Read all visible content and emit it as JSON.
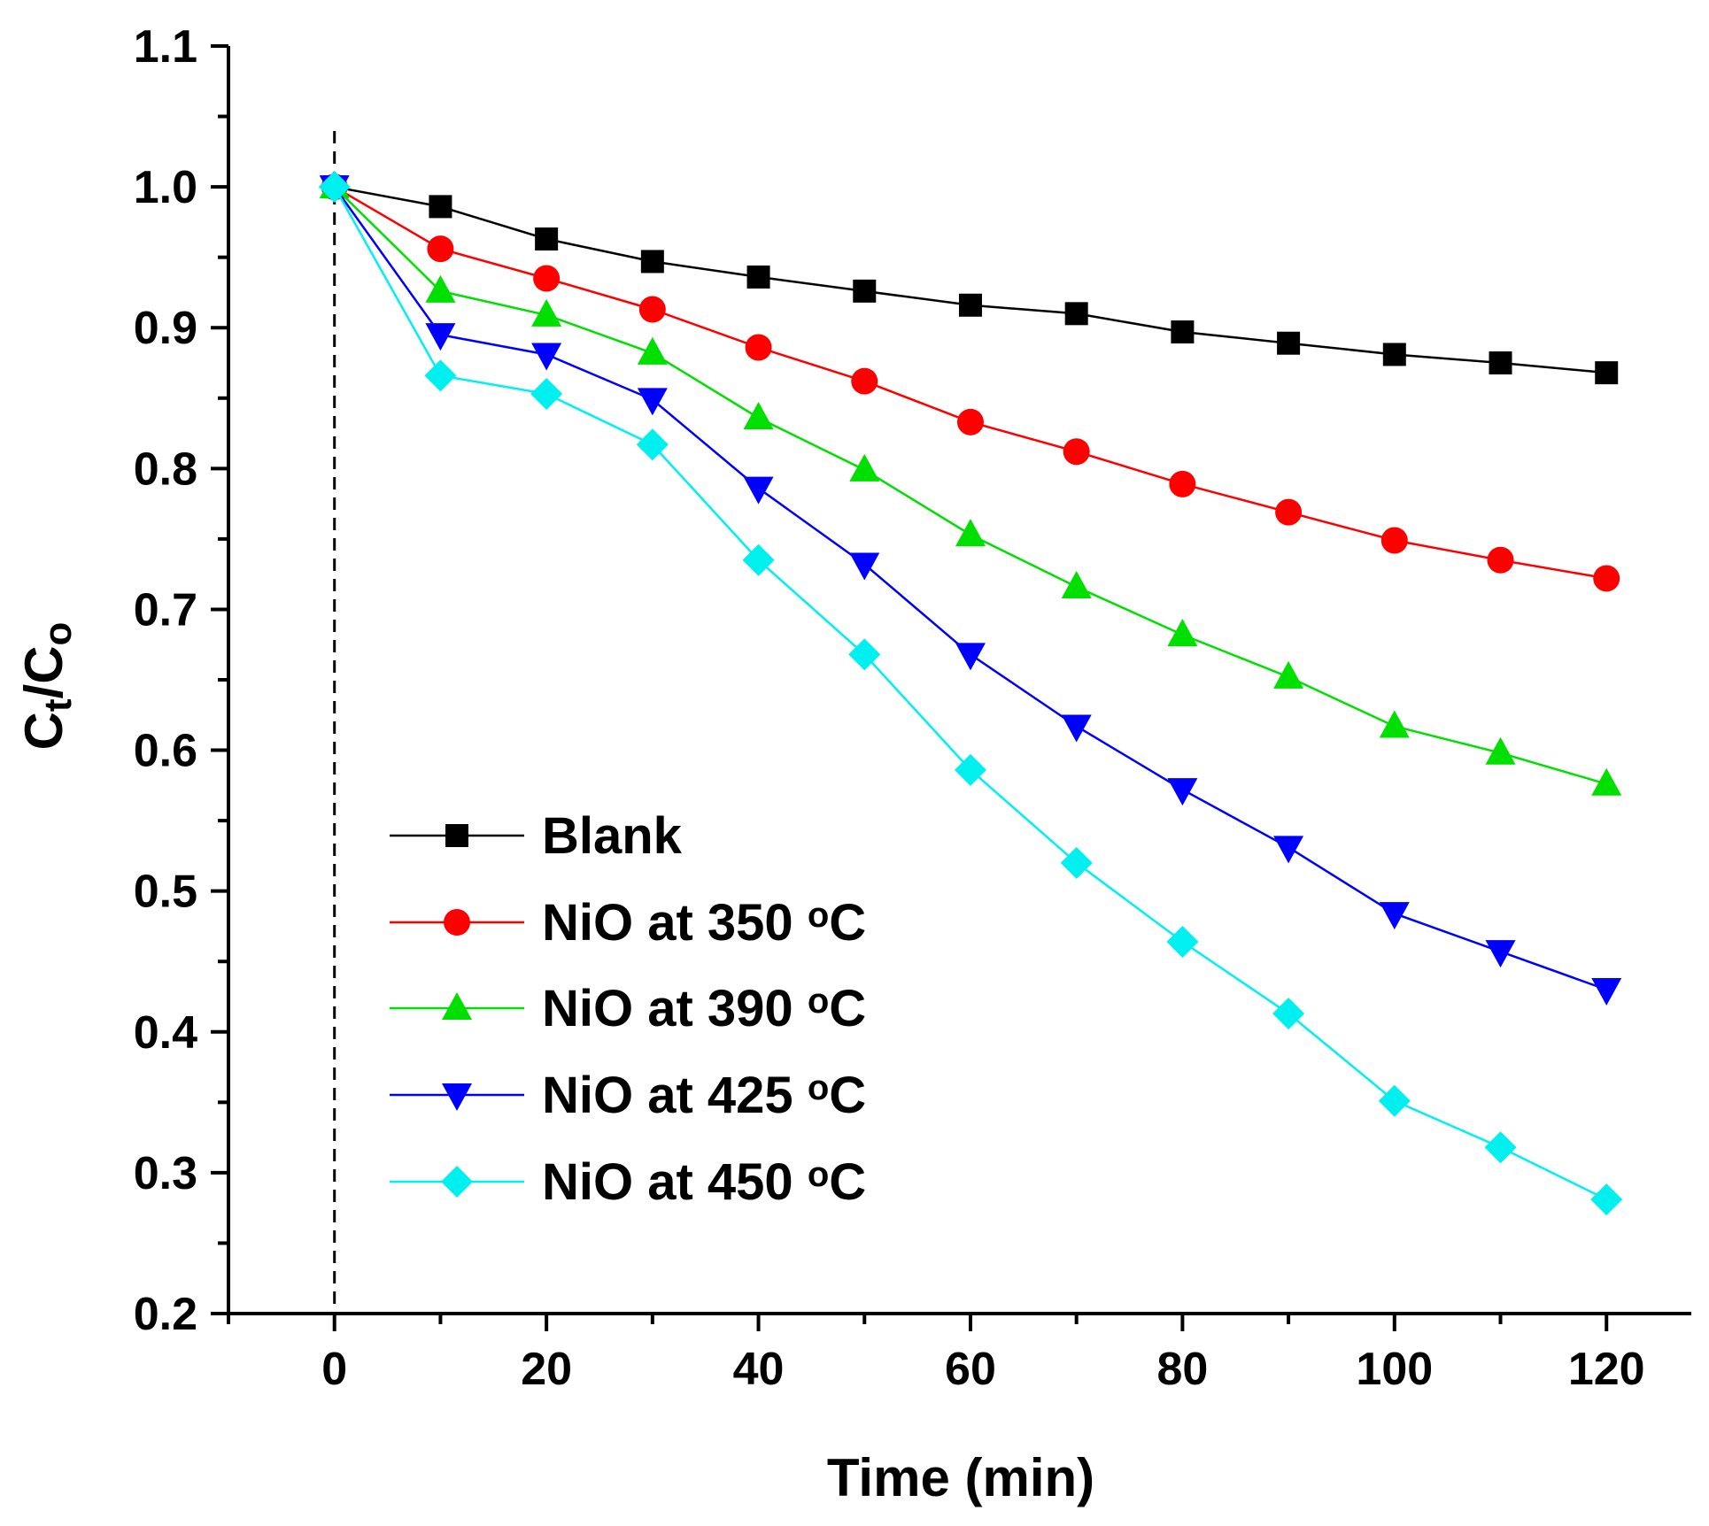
{
  "chart_data": {
    "type": "line",
    "xlabel": "Time (min)",
    "ylabel": {
      "main": "C",
      "sub1": "t",
      "mid": "/C",
      "sub2": "o"
    },
    "xlim": [
      -10,
      128
    ],
    "ylim": [
      0.2,
      1.1
    ],
    "xticks": [
      0,
      20,
      40,
      60,
      80,
      100,
      120
    ],
    "yticks": [
      0.2,
      0.3,
      0.4,
      0.5,
      0.6,
      0.7,
      0.8,
      0.9,
      1.0,
      1.1
    ],
    "xtick_labels": [
      "0",
      "20",
      "40",
      "60",
      "80",
      "100",
      "120"
    ],
    "ytick_labels": [
      "0.2",
      "0.3",
      "0.4",
      "0.5",
      "0.6",
      "0.7",
      "0.8",
      "0.9",
      "1.0",
      "1.1"
    ],
    "reference_line_x": 0,
    "legend_position": "bottom-left",
    "x": [
      0,
      10,
      20,
      30,
      40,
      50,
      60,
      70,
      80,
      90,
      100,
      110,
      120
    ],
    "series": [
      {
        "name": "Blank",
        "color": "#000000",
        "marker": "square",
        "values": [
          1.0,
          0.986,
          0.963,
          0.947,
          0.936,
          0.926,
          0.916,
          0.91,
          0.897,
          0.889,
          0.881,
          0.875,
          0.868
        ]
      },
      {
        "name": "NiO at 350 °C",
        "color": "#ff0000",
        "marker": "circle",
        "values": [
          1.0,
          0.956,
          0.935,
          0.913,
          0.886,
          0.862,
          0.833,
          0.812,
          0.789,
          0.769,
          0.749,
          0.735,
          0.722
        ]
      },
      {
        "name": "NiO at 390 °C",
        "color": "#00e000",
        "marker": "triangle-up",
        "values": [
          1.0,
          0.926,
          0.909,
          0.882,
          0.836,
          0.799,
          0.753,
          0.716,
          0.682,
          0.652,
          0.617,
          0.598,
          0.576
        ]
      },
      {
        "name": "NiO at 425 °C",
        "color": "#0000ff",
        "marker": "triangle-down",
        "values": [
          1.0,
          0.895,
          0.881,
          0.849,
          0.786,
          0.732,
          0.668,
          0.617,
          0.572,
          0.531,
          0.484,
          0.457,
          0.43
        ]
      },
      {
        "name": "NiO at 450 °C",
        "color": "#00f0f0",
        "marker": "diamond",
        "values": [
          1.0,
          0.866,
          0.853,
          0.817,
          0.735,
          0.668,
          0.586,
          0.52,
          0.464,
          0.413,
          0.351,
          0.318,
          0.281
        ]
      }
    ]
  }
}
